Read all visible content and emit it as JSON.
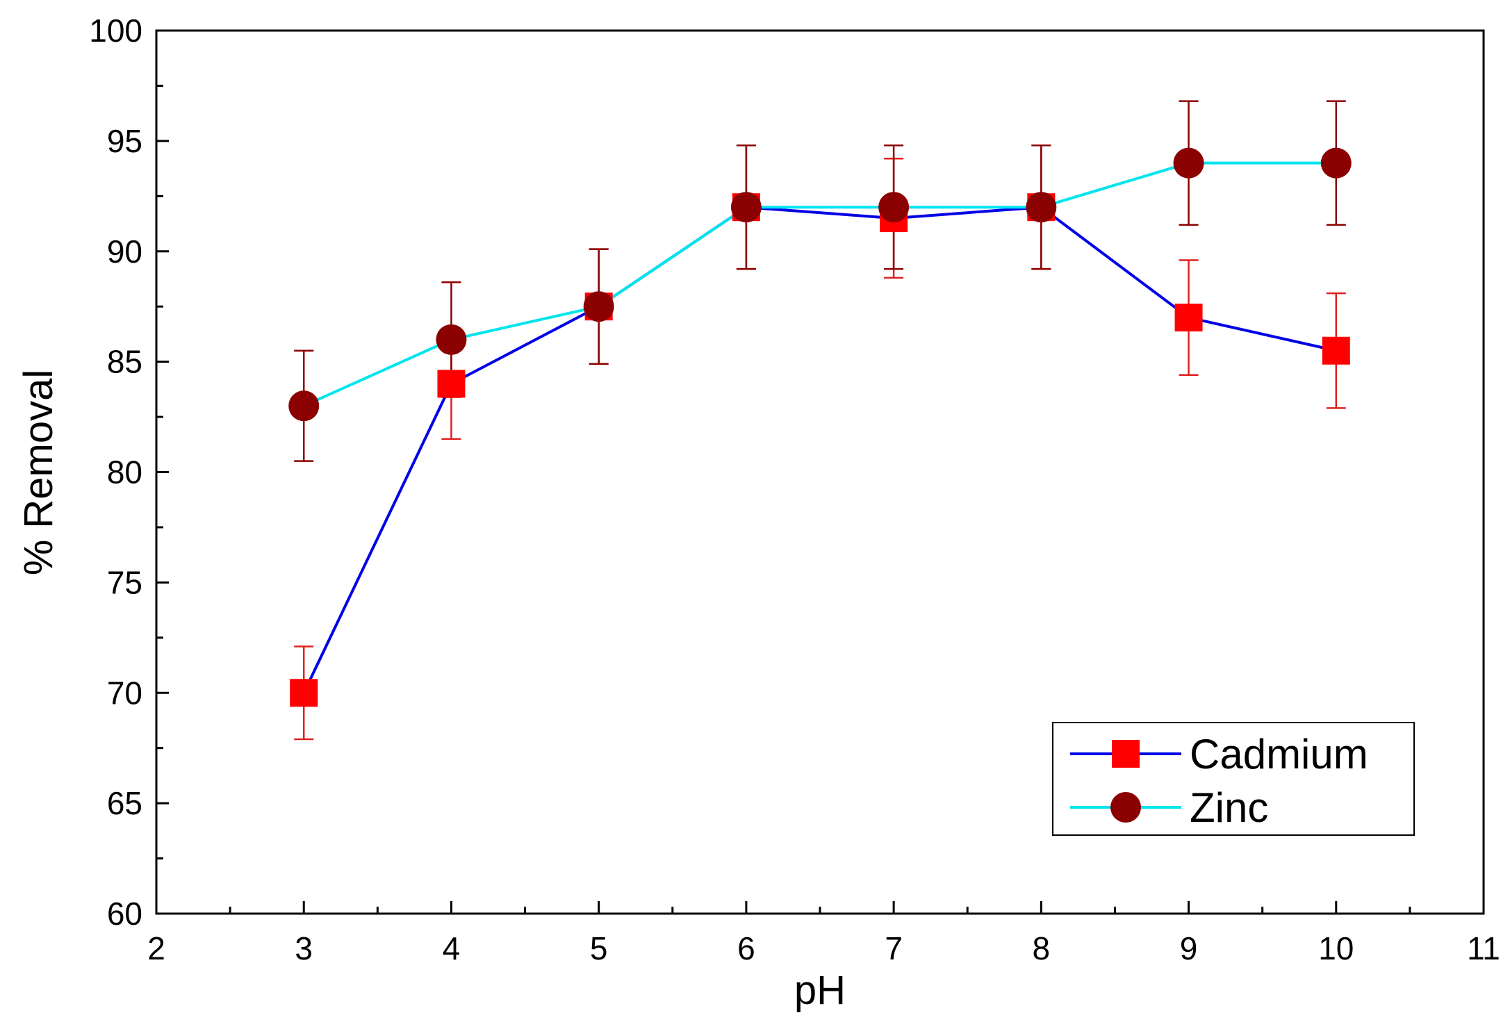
{
  "chart_data": {
    "type": "line",
    "title": "",
    "xlabel": "pH",
    "ylabel": "% Removal",
    "xlim": [
      2,
      11
    ],
    "ylim": [
      60,
      100
    ],
    "xticks": [
      2,
      3,
      4,
      5,
      6,
      7,
      8,
      9,
      10,
      11
    ],
    "yticks": [
      60,
      65,
      70,
      75,
      80,
      85,
      90,
      95,
      100
    ],
    "legend_position": "bottom-right",
    "series": [
      {
        "name": "Cadmium",
        "line_color": "#0000e6",
        "marker": "square",
        "marker_color": "#ff0000",
        "errorbar_color": "#e02020",
        "x": [
          3,
          4,
          5,
          6,
          7,
          8,
          9,
          10
        ],
        "y": [
          70,
          84,
          87.5,
          92,
          91.5,
          92,
          87,
          85.5
        ],
        "error": [
          2.1,
          2.5,
          2.6,
          2.8,
          2.7,
          2.8,
          2.6,
          2.6
        ]
      },
      {
        "name": "Zinc",
        "line_color": "#00e5ee",
        "marker": "circle",
        "marker_color": "#8b0000",
        "errorbar_color": "#8b0000",
        "x": [
          3,
          4,
          5,
          6,
          7,
          8,
          9,
          10
        ],
        "y": [
          83,
          86,
          87.5,
          92,
          92,
          92,
          94,
          94
        ],
        "error": [
          2.5,
          2.6,
          2.6,
          2.8,
          2.8,
          2.8,
          2.8,
          2.8
        ]
      }
    ]
  }
}
